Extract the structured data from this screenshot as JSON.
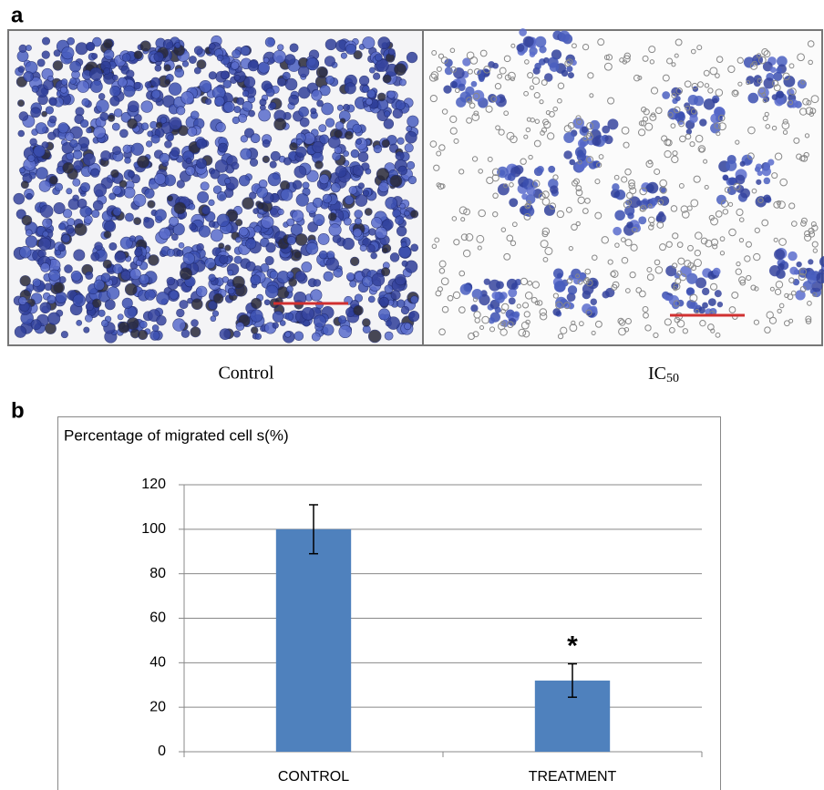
{
  "panels": {
    "a": {
      "label": "a",
      "captions": [
        {
          "text": "Control"
        },
        {
          "text": "IC",
          "subscript": "50"
        }
      ]
    },
    "b": {
      "label": "b"
    }
  },
  "chart_data": {
    "type": "bar",
    "ylabel": "Percentage of migrated cell s(%)",
    "categories": [
      "CONTROL",
      "TREATMENT"
    ],
    "values": [
      100,
      32
    ],
    "errors": [
      11,
      7.5
    ],
    "annotations": [
      {
        "category": 1,
        "text": "*"
      }
    ],
    "color": "#4f81bd",
    "ylim": [
      0,
      120
    ],
    "yticks": [
      0,
      20,
      40,
      60,
      80,
      100,
      120
    ],
    "grid": true
  }
}
